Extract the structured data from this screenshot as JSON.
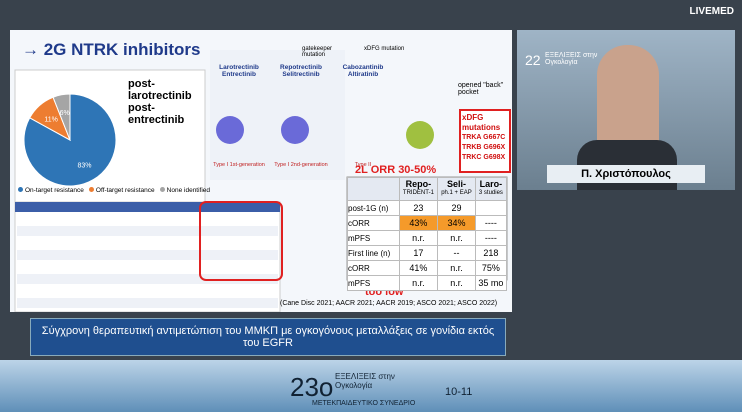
{
  "header": {
    "logo": "LIVEMED"
  },
  "slide": {
    "title": "→ 2G NTRK inhibitors",
    "resistance_heading": "post-larotrectinib post-entrectinib",
    "pie": {
      "type": "pie",
      "values": [
        83,
        11,
        6
      ],
      "value_labels": [
        "83%",
        "11%",
        "6%"
      ],
      "colors": [
        "#2e75b6",
        "#ed7d31",
        "#a5a5a5"
      ],
      "legend": [
        "On-target resistance",
        "Off-target resistance",
        "None identified"
      ]
    },
    "drugs": [
      {
        "name": "Larotrectinib Entrectinib",
        "note": "Type I 1st-generation"
      },
      {
        "name": "Repotrectinib Selitrectinib",
        "note": "Type I 2nd-generation",
        "mutation": "gatekeeper mutation"
      },
      {
        "name": "Cabozantinib Altiratinib",
        "note": "Type II",
        "mutation": "xDFG mutation"
      }
    ],
    "pocket_note": "opened \"back\" pocket",
    "xdfg": {
      "title": "xDFG mutations",
      "items": [
        "TRKA G667C",
        "TRKB G696X",
        "TRKC G698X"
      ]
    },
    "annotation_top": "2L ORR 30-50%",
    "annotation_bottom": "too low",
    "table": {
      "columns": [
        [
          "",
          ""
        ],
        [
          "Repo-",
          "TRIDENT-1"
        ],
        [
          "Seli-",
          "ph.1 + EAP"
        ],
        [
          "Laro-",
          "3 studies"
        ]
      ],
      "rows": [
        [
          "post-1G (n)",
          "23",
          "29",
          ""
        ],
        [
          "cORR",
          "43%",
          "34%",
          "----"
        ],
        [
          "mPFS",
          "n.r.",
          "n.r.",
          "----"
        ],
        [
          "First line (n)",
          "17",
          "--",
          "218"
        ],
        [
          "cORR",
          "41%",
          "n.r.",
          "75%"
        ],
        [
          "mPFS",
          "n.r.",
          "n.r.",
          "35 mo"
        ]
      ]
    },
    "citation": "(Cane Disc 2021; AACR 2021; AACR 2019; ASCO 2021; ASCO 2022)",
    "caption": "Σύγχρονη θεραπευτική αντιμετώπιση του ΜΜΚΠ με ογκογόνους μεταλλάξεις σε γονίδια εκτός του EGFR"
  },
  "speaker": {
    "name": "Π. Χριστόπουλος",
    "badge": "22",
    "badge_text": "ΕΞΕΛΙΞΕΙΣ στην Ογκολογία"
  },
  "banner": {
    "number": "23ο",
    "title": "ΕΞΕΛΙΞΕΙΣ στην Ογκολογία",
    "subtitle": "ΜΕΤΕΚΠΑΙΔΕΥΤΙΚΟ ΣΥΝΕΔΡΙΟ",
    "dates": "10-11"
  }
}
